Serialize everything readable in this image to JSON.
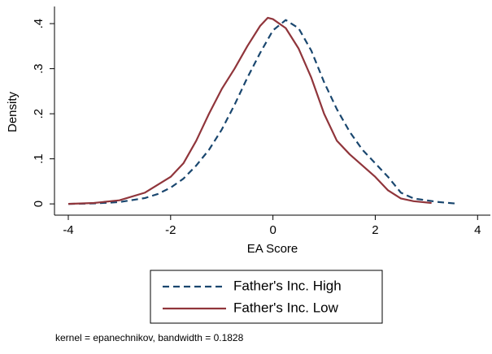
{
  "chart_data": {
    "type": "line",
    "x_label": "EA Score",
    "y_label": "Density",
    "note": "kernel = epanechnikov, bandwidth = 0.1828",
    "xlim": [
      -4.27,
      4.25
    ],
    "ylim": [
      -0.025,
      0.438
    ],
    "xticks": [
      -4,
      -2,
      0,
      2,
      4
    ],
    "yticks": [
      0,
      {
        "value": 0.1,
        "label": ".1"
      },
      {
        "value": 0.2,
        "label": ".2"
      },
      {
        "value": 0.3,
        "label": ".3"
      },
      {
        "value": 0.4,
        "label": ".4"
      }
    ],
    "series": [
      {
        "name": "Father's Inc. High",
        "color": "#1a476f",
        "dash": "8 5",
        "x": [
          -4,
          -3.5,
          -3,
          -2.5,
          -2.25,
          -2,
          -1.75,
          -1.5,
          -1.25,
          -1,
          -0.75,
          -0.5,
          -0.25,
          0,
          0.25,
          0.5,
          0.75,
          1,
          1.25,
          1.5,
          1.75,
          2,
          2.25,
          2.5,
          2.75,
          3,
          3.25,
          3.55
        ],
        "values": [
          0,
          0.001,
          0.004,
          0.013,
          0.022,
          0.036,
          0.056,
          0.085,
          0.12,
          0.165,
          0.22,
          0.28,
          0.335,
          0.385,
          0.408,
          0.39,
          0.34,
          0.27,
          0.21,
          0.16,
          0.12,
          0.09,
          0.06,
          0.025,
          0.012,
          0.008,
          0.004,
          0.001
        ]
      },
      {
        "name": "Father's Inc. Low",
        "color": "#90353b",
        "dash": "none",
        "x": [
          -4,
          -3.5,
          -3,
          -2.5,
          -2,
          -1.75,
          -1.5,
          -1.25,
          -1,
          -0.75,
          -0.5,
          -0.25,
          -0.1,
          0,
          0.25,
          0.5,
          0.75,
          1,
          1.25,
          1.5,
          1.75,
          2,
          2.25,
          2.5,
          2.75,
          3.1
        ],
        "values": [
          0,
          0.002,
          0.008,
          0.025,
          0.06,
          0.09,
          0.14,
          0.2,
          0.255,
          0.3,
          0.35,
          0.395,
          0.413,
          0.41,
          0.39,
          0.345,
          0.28,
          0.2,
          0.14,
          0.11,
          0.085,
          0.06,
          0.03,
          0.012,
          0.006,
          0.002
        ]
      }
    ]
  }
}
